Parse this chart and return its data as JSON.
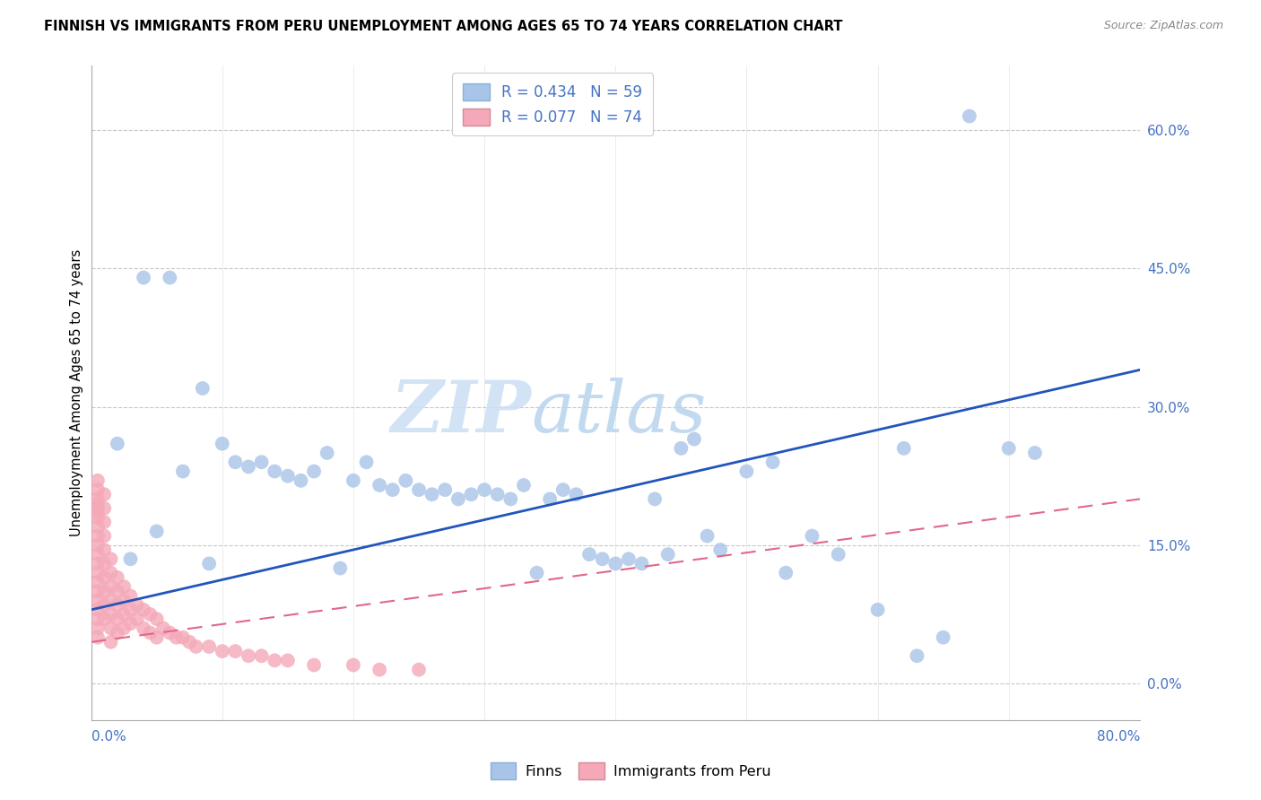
{
  "title": "FINNISH VS IMMIGRANTS FROM PERU UNEMPLOYMENT AMONG AGES 65 TO 74 YEARS CORRELATION CHART",
  "source": "Source: ZipAtlas.com",
  "ylabel": "Unemployment Among Ages 65 to 74 years",
  "ytick_vals": [
    0.0,
    15.0,
    30.0,
    45.0,
    60.0
  ],
  "xrange": [
    0.0,
    80.0
  ],
  "yrange": [
    -4.0,
    67.0
  ],
  "watermark_zip": "ZIP",
  "watermark_atlas": "atlas",
  "legend_label_finns": "Finns",
  "legend_label_peru": "Immigrants from Peru",
  "finns_color": "#a8c4e8",
  "peru_color": "#f4a8b8",
  "finns_line_color": "#2255bb",
  "peru_line_color": "#e06888",
  "finns_r": 0.434,
  "finns_n": 59,
  "peru_r": 0.077,
  "peru_n": 74,
  "finns_line": [
    0.0,
    8.0,
    80.0,
    34.0
  ],
  "peru_line": [
    0.0,
    4.5,
    80.0,
    20.0
  ],
  "finns_x": [
    2.0,
    4.0,
    6.0,
    7.0,
    8.5,
    10.0,
    11.0,
    12.0,
    13.0,
    14.0,
    15.0,
    16.0,
    17.0,
    18.0,
    20.0,
    21.0,
    22.0,
    23.0,
    24.0,
    25.0,
    26.0,
    27.0,
    28.0,
    29.0,
    30.0,
    31.0,
    32.0,
    33.0,
    35.0,
    36.0,
    37.0,
    38.0,
    39.0,
    40.0,
    41.0,
    42.0,
    43.0,
    45.0,
    46.0,
    47.0,
    48.0,
    50.0,
    52.0,
    55.0,
    57.0,
    60.0,
    62.0,
    65.0,
    70.0,
    72.0,
    3.0,
    5.0,
    9.0,
    19.0,
    34.0,
    44.0,
    53.0,
    63.0,
    67.0
  ],
  "finns_y": [
    26.0,
    44.0,
    44.0,
    23.0,
    32.0,
    26.0,
    24.0,
    23.5,
    24.0,
    23.0,
    22.5,
    22.0,
    23.0,
    25.0,
    22.0,
    24.0,
    21.5,
    21.0,
    22.0,
    21.0,
    20.5,
    21.0,
    20.0,
    20.5,
    21.0,
    20.5,
    20.0,
    21.5,
    20.0,
    21.0,
    20.5,
    14.0,
    13.5,
    13.0,
    13.5,
    13.0,
    20.0,
    25.5,
    26.5,
    16.0,
    14.5,
    23.0,
    24.0,
    16.0,
    14.0,
    8.0,
    25.5,
    5.0,
    25.5,
    25.0,
    13.5,
    16.5,
    13.0,
    12.5,
    12.0,
    14.0,
    12.0,
    3.0,
    61.5
  ],
  "peru_x": [
    0.5,
    0.5,
    0.5,
    0.5,
    0.5,
    0.5,
    0.5,
    0.5,
    0.5,
    0.5,
    0.5,
    0.5,
    0.5,
    0.5,
    0.5,
    0.5,
    0.5,
    0.5,
    0.5,
    0.5,
    1.0,
    1.0,
    1.0,
    1.0,
    1.0,
    1.0,
    1.0,
    1.0,
    1.0,
    1.0,
    1.5,
    1.5,
    1.5,
    1.5,
    1.5,
    1.5,
    1.5,
    2.0,
    2.0,
    2.0,
    2.0,
    2.0,
    2.5,
    2.5,
    2.5,
    2.5,
    3.0,
    3.0,
    3.0,
    3.5,
    3.5,
    4.0,
    4.0,
    4.5,
    4.5,
    5.0,
    5.0,
    5.5,
    6.0,
    6.5,
    7.0,
    7.5,
    8.0,
    9.0,
    10.0,
    11.0,
    12.0,
    13.0,
    14.0,
    15.0,
    17.0,
    20.0,
    22.0,
    25.0
  ],
  "peru_y": [
    22.0,
    21.0,
    20.0,
    19.5,
    19.0,
    18.5,
    18.0,
    17.0,
    16.0,
    15.0,
    14.0,
    13.0,
    12.0,
    11.0,
    10.0,
    9.0,
    8.0,
    7.0,
    6.0,
    5.0,
    20.5,
    19.0,
    17.5,
    16.0,
    14.5,
    13.0,
    11.5,
    10.0,
    8.5,
    7.0,
    13.5,
    12.0,
    10.5,
    9.0,
    7.5,
    6.0,
    4.5,
    11.5,
    10.0,
    8.5,
    7.0,
    5.5,
    10.5,
    9.0,
    7.5,
    6.0,
    9.5,
    8.0,
    6.5,
    8.5,
    7.0,
    8.0,
    6.0,
    7.5,
    5.5,
    7.0,
    5.0,
    6.0,
    5.5,
    5.0,
    5.0,
    4.5,
    4.0,
    4.0,
    3.5,
    3.5,
    3.0,
    3.0,
    2.5,
    2.5,
    2.0,
    2.0,
    1.5,
    1.5
  ]
}
